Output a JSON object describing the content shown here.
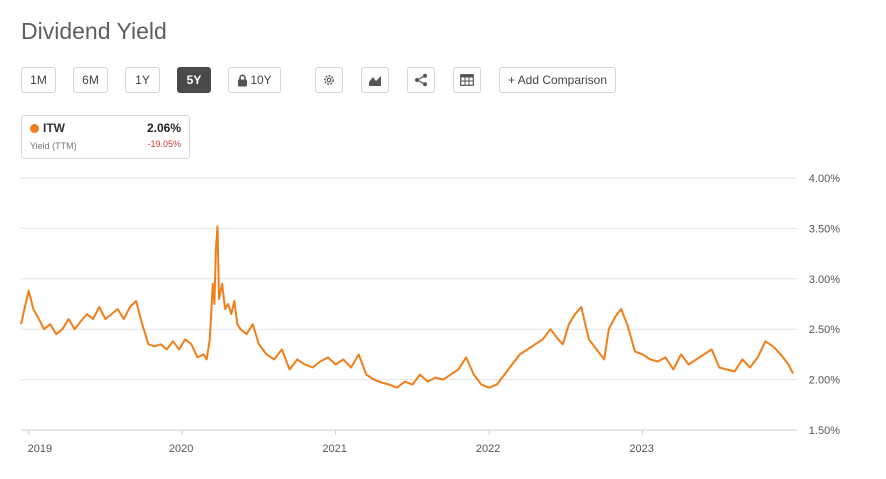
{
  "title": "Dividend Yield",
  "toolbar": {
    "ranges": [
      "1M",
      "6M",
      "1Y",
      "5Y",
      "10Y"
    ],
    "active_range": "5Y",
    "locked_range": "10Y",
    "icons": [
      "gear-icon",
      "chart-type-icon",
      "share-icon",
      "table-icon"
    ],
    "add_comparison": "+ Add Comparison"
  },
  "legend": {
    "ticker": "ITW",
    "value": "2.06%",
    "subtitle": "Yield (TTM)",
    "change": "-19.05%",
    "change_color": "#d23a3a",
    "series_color": "#f07f1b"
  },
  "chart_data": {
    "type": "line",
    "title": "",
    "xlabel": "",
    "ylabel": "",
    "y_tick_labels": [
      "4.00%",
      "3.50%",
      "3.00%",
      "2.50%",
      "2.00%",
      "1.50%"
    ],
    "y_ticks": [
      4.0,
      3.5,
      3.0,
      2.5,
      2.0,
      1.5
    ],
    "ylim": [
      1.5,
      4.0
    ],
    "x_tick_labels": [
      "2019",
      "2020",
      "2021",
      "2022",
      "2023"
    ],
    "x_ticks": [
      2019.0,
      2020.0,
      2021.0,
      2022.0,
      2023.0
    ],
    "xlim": [
      2018.95,
      2023.98
    ],
    "grid": "horizontal",
    "series": [
      {
        "color": "#f07f1b",
        "x": [
          2018.95,
          2018.98,
          2019.0,
          2019.03,
          2019.06,
          2019.1,
          2019.14,
          2019.18,
          2019.22,
          2019.26,
          2019.3,
          2019.34,
          2019.38,
          2019.42,
          2019.46,
          2019.5,
          2019.54,
          2019.58,
          2019.62,
          2019.66,
          2019.7,
          2019.74,
          2019.78,
          2019.82,
          2019.86,
          2019.9,
          2019.94,
          2019.98,
          2020.02,
          2020.06,
          2020.1,
          2020.14,
          2020.16,
          2020.18,
          2020.2,
          2020.21,
          2020.22,
          2020.23,
          2020.24,
          2020.26,
          2020.28,
          2020.3,
          2020.32,
          2020.34,
          2020.36,
          2020.38,
          2020.42,
          2020.46,
          2020.5,
          2020.55,
          2020.6,
          2020.65,
          2020.7,
          2020.75,
          2020.8,
          2020.85,
          2020.9,
          2020.95,
          2021.0,
          2021.05,
          2021.1,
          2021.15,
          2021.2,
          2021.25,
          2021.3,
          2021.35,
          2021.4,
          2021.45,
          2021.5,
          2021.55,
          2021.6,
          2021.65,
          2021.7,
          2021.75,
          2021.8,
          2021.85,
          2021.9,
          2021.95,
          2022.0,
          2022.05,
          2022.1,
          2022.15,
          2022.2,
          2022.25,
          2022.3,
          2022.35,
          2022.4,
          2022.45,
          2022.48,
          2022.52,
          2022.56,
          2022.6,
          2022.65,
          2022.7,
          2022.75,
          2022.78,
          2022.82,
          2022.86,
          2022.9,
          2022.95,
          2023.0,
          2023.05,
          2023.1,
          2023.15,
          2023.2,
          2023.25,
          2023.3,
          2023.35,
          2023.4,
          2023.45,
          2023.5,
          2023.55,
          2023.6,
          2023.65,
          2023.7,
          2023.75,
          2023.8,
          2023.85,
          2023.9,
          2023.95,
          2023.98
        ],
        "values": [
          2.55,
          2.75,
          2.88,
          2.7,
          2.62,
          2.5,
          2.55,
          2.45,
          2.5,
          2.6,
          2.5,
          2.58,
          2.65,
          2.6,
          2.72,
          2.6,
          2.65,
          2.7,
          2.6,
          2.72,
          2.78,
          2.55,
          2.35,
          2.33,
          2.35,
          2.3,
          2.38,
          2.3,
          2.4,
          2.35,
          2.22,
          2.25,
          2.2,
          2.4,
          2.95,
          2.75,
          3.3,
          3.52,
          2.8,
          2.95,
          2.7,
          2.75,
          2.65,
          2.78,
          2.55,
          2.5,
          2.45,
          2.55,
          2.35,
          2.25,
          2.2,
          2.3,
          2.1,
          2.2,
          2.15,
          2.12,
          2.18,
          2.22,
          2.15,
          2.2,
          2.12,
          2.25,
          2.05,
          2.0,
          1.97,
          1.95,
          1.92,
          1.98,
          1.95,
          2.05,
          1.98,
          2.02,
          2.0,
          2.05,
          2.1,
          2.22,
          2.05,
          1.95,
          1.92,
          1.95,
          2.05,
          2.15,
          2.25,
          2.3,
          2.35,
          2.4,
          2.5,
          2.4,
          2.35,
          2.55,
          2.65,
          2.72,
          2.4,
          2.3,
          2.2,
          2.5,
          2.62,
          2.7,
          2.55,
          2.28,
          2.25,
          2.2,
          2.18,
          2.22,
          2.1,
          2.25,
          2.15,
          2.2,
          2.25,
          2.3,
          2.12,
          2.1,
          2.08,
          2.2,
          2.12,
          2.22,
          2.38,
          2.33,
          2.25,
          2.15,
          2.06
        ]
      }
    ]
  }
}
